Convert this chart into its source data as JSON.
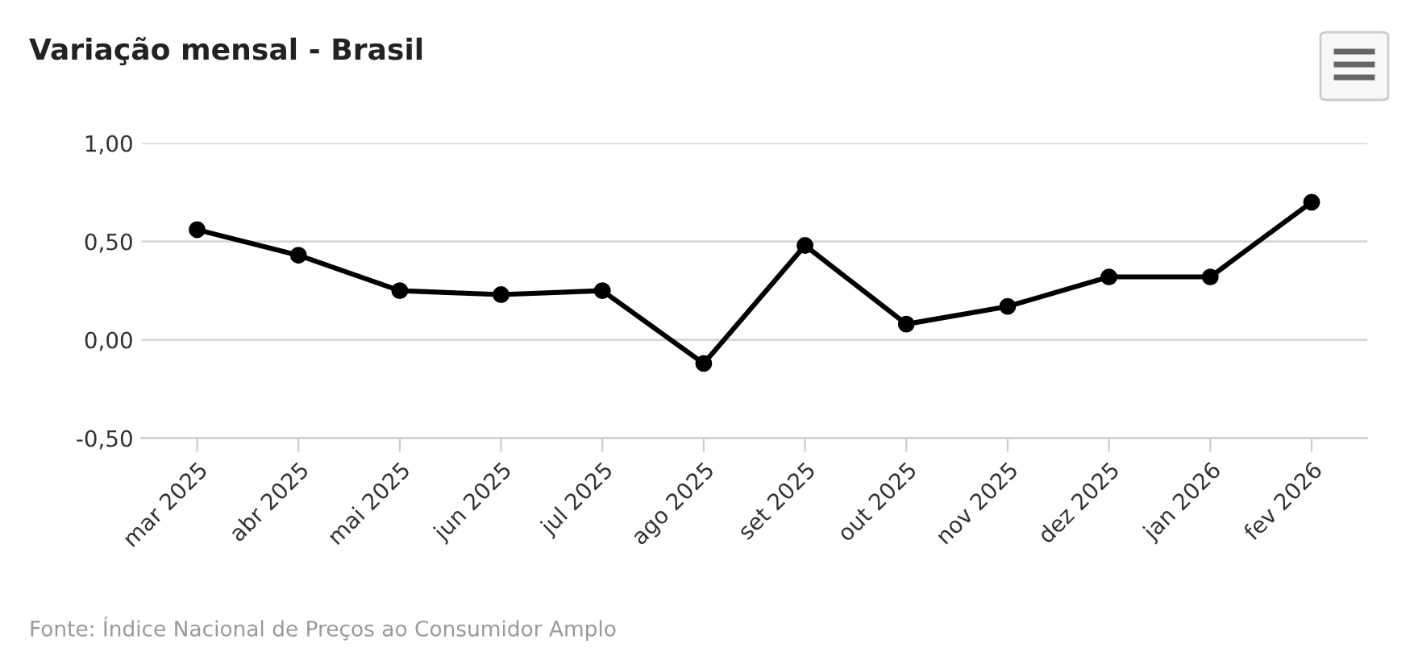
{
  "chart_data": {
    "type": "line",
    "title": "Variação mensal - Brasil",
    "categories": [
      "mar 2025",
      "abr 2025",
      "mai 2025",
      "jun 2025",
      "jul 2025",
      "ago 2025",
      "set 2025",
      "out 2025",
      "nov 2025",
      "dez 2025",
      "jan 2026",
      "fev 2026"
    ],
    "series": [
      {
        "color": "#000000",
        "values": [
          0.56,
          0.43,
          0.25,
          0.23,
          0.25,
          -0.12,
          0.48,
          0.08,
          0.17,
          0.32,
          0.32,
          0.7
        ]
      }
    ],
    "ylim": [
      -0.5,
      1.0
    ],
    "yticks": [
      {
        "value": -0.5,
        "label": "-0,50"
      },
      {
        "value": 0,
        "label": "0,00"
      },
      {
        "value": 0.5,
        "label": "0,50"
      },
      {
        "value": 1.0,
        "label": "1,00"
      }
    ],
    "grid": "y",
    "marker": "circle",
    "line_style": "solid",
    "legend": false,
    "annotations": [
      "Fonte: Índice Nacional de Preços ao Consumidor Amplo"
    ]
  }
}
